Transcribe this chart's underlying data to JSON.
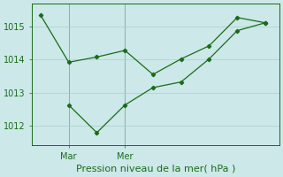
{
  "line1_x": [
    0,
    1,
    2,
    3,
    4,
    5,
    6,
    7,
    8
  ],
  "line1_y": [
    1015.35,
    1013.92,
    1014.08,
    1014.28,
    1013.55,
    1014.02,
    1014.42,
    1015.28,
    1015.12
  ],
  "line2_x": [
    1,
    2,
    3,
    4,
    5,
    6,
    7,
    8
  ],
  "line2_y": [
    1012.62,
    1011.78,
    1012.62,
    1013.15,
    1013.32,
    1014.02,
    1014.88,
    1015.12
  ],
  "color": "#1a6b1a",
  "background": "#cce8e8",
  "grid_color": "#aacfcf",
  "yticks": [
    1012,
    1013,
    1014,
    1015
  ],
  "ylim": [
    1011.4,
    1015.7
  ],
  "xlim_left": -0.3,
  "xlim_right": 8.5,
  "mar_x": 1,
  "mer_x": 3,
  "xlabel": "Pression niveau de la mer( hPa )",
  "tick_fontsize": 7,
  "xlabel_fontsize": 8
}
